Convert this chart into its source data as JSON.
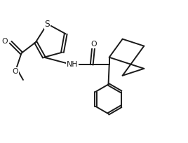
{
  "bg_color": "#ffffff",
  "line_color": "#1a1a1a",
  "line_width": 1.4,
  "font_size": 7.8,
  "fig_width": 2.68,
  "fig_height": 2.04,
  "dpi": 100,
  "xlim": [
    -0.5,
    10.5
  ],
  "ylim": [
    -0.5,
    8.0
  ]
}
